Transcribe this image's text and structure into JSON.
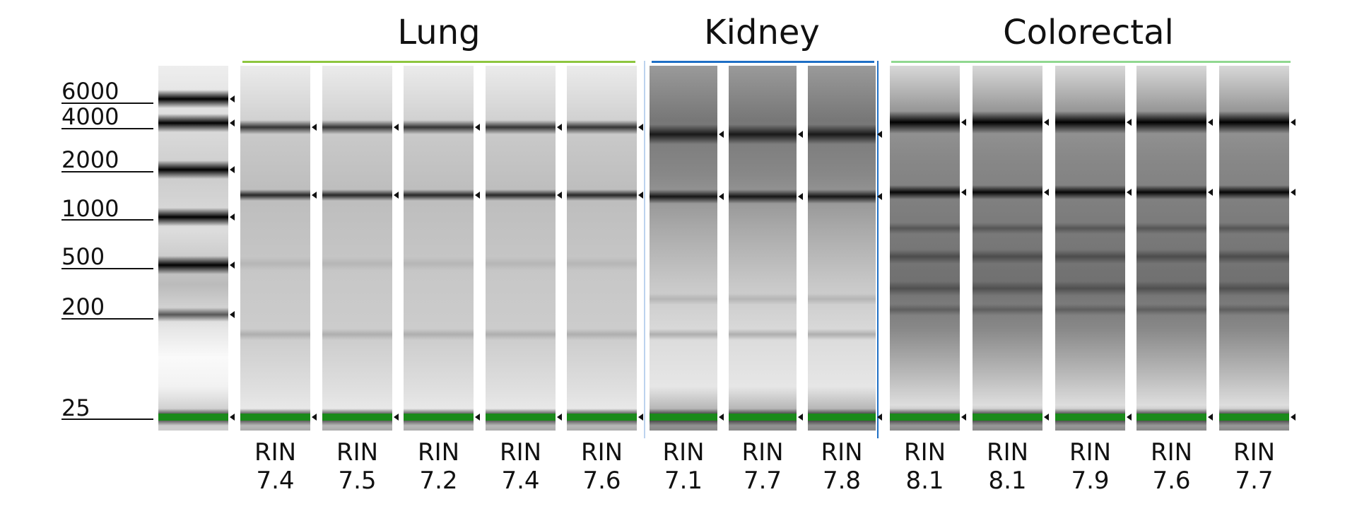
{
  "ladder": {
    "labels": [
      "6000",
      "4000",
      "2000",
      "1000",
      "500",
      "200",
      "25"
    ]
  },
  "groups": [
    {
      "name": "Lung",
      "lanes": [
        {
          "label": "RIN",
          "value": "7.4"
        },
        {
          "label": "RIN",
          "value": "7.5"
        },
        {
          "label": "RIN",
          "value": "7.2"
        },
        {
          "label": "RIN",
          "value": "7.4"
        },
        {
          "label": "RIN",
          "value": "7.6"
        }
      ]
    },
    {
      "name": "Kidney",
      "lanes": [
        {
          "label": "RIN",
          "value": "7.1"
        },
        {
          "label": "RIN",
          "value": "7.7"
        },
        {
          "label": "RIN",
          "value": "7.8"
        }
      ]
    },
    {
      "name": "Colorectal",
      "lanes": [
        {
          "label": "RIN",
          "value": "8.1"
        },
        {
          "label": "RIN",
          "value": "8.1"
        },
        {
          "label": "RIN",
          "value": "7.9"
        },
        {
          "label": "RIN",
          "value": "7.6"
        },
        {
          "label": "RIN",
          "value": "7.7"
        }
      ]
    }
  ]
}
